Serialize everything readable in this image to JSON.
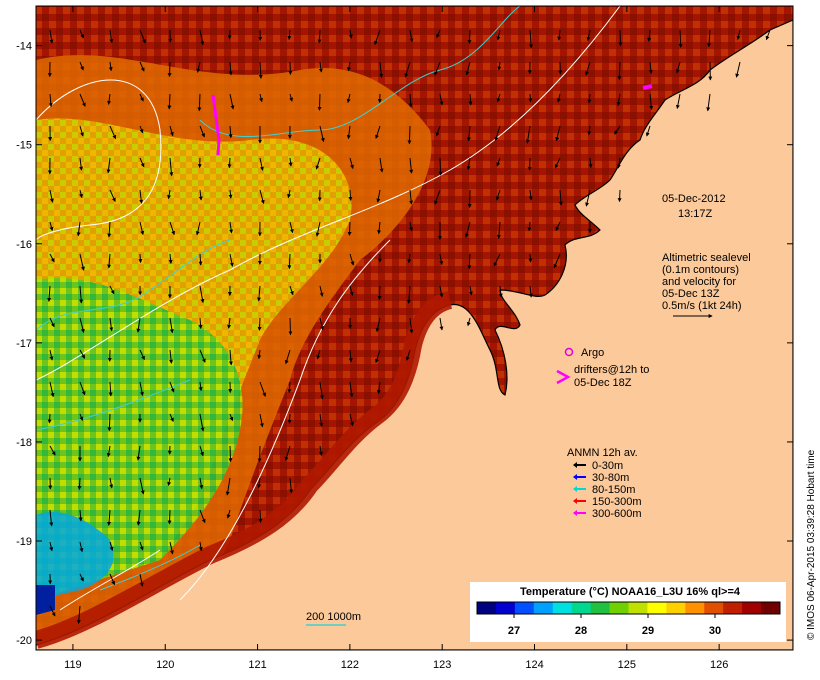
{
  "map": {
    "lat_ticks": [
      "-14",
      "-15",
      "-16",
      "-17",
      "-18",
      "-19",
      "-20"
    ],
    "lon_ticks": [
      "119",
      "120",
      "121",
      "122",
      "123",
      "124",
      "125",
      "126"
    ],
    "lat_range": [
      -20.1,
      -13.6
    ],
    "lon_range": [
      118.6,
      126.8
    ],
    "date_line1": "05-Dec-2012",
    "date_line2": "13:17Z"
  },
  "altimetry": {
    "line1": "Altimetric sealevel",
    "line2": "(0.1m contours)",
    "line3": "and velocity for",
    "line4": "05-Dec 13Z",
    "line5": "0.5m/s (1kt 24h)"
  },
  "markers": {
    "argo": "Argo",
    "drifters_line1": "drifters@12h to",
    "drifters_line2": "05-Dec 18Z",
    "argo_color": "#e000e0"
  },
  "anmn": {
    "title": "ANMN 12h av.",
    "items": [
      {
        "label": "0-30m",
        "color": "#000000"
      },
      {
        "label": "30-80m",
        "color": "#0000ff"
      },
      {
        "label": "80-150m",
        "color": "#00d8d8"
      },
      {
        "label": "150-300m",
        "color": "#ff0000"
      },
      {
        "label": "300-600m",
        "color": "#ff00ff"
      }
    ]
  },
  "colorbar": {
    "title": "Temperature (°C) NOAA16_L3U 16% ql>=4",
    "ticks": [
      "27",
      "28",
      "29",
      "30"
    ],
    "colors": [
      "#000080",
      "#0000d0",
      "#0050ff",
      "#00a0ff",
      "#00e0e0",
      "#00d890",
      "#20c040",
      "#70d000",
      "#c0e000",
      "#ffff00",
      "#ffd000",
      "#ff9000",
      "#e05000",
      "#c02000",
      "#a00000",
      "#700000"
    ]
  },
  "scale": {
    "label": "200  1000m"
  },
  "credit": "© IMOS 06-Apr-2015 03:39:28 Hobart time",
  "colors": {
    "land": "#fcc99a",
    "sea_warm": "#a51400",
    "contour": "#ffffff",
    "isobath": "#40d0d0"
  }
}
